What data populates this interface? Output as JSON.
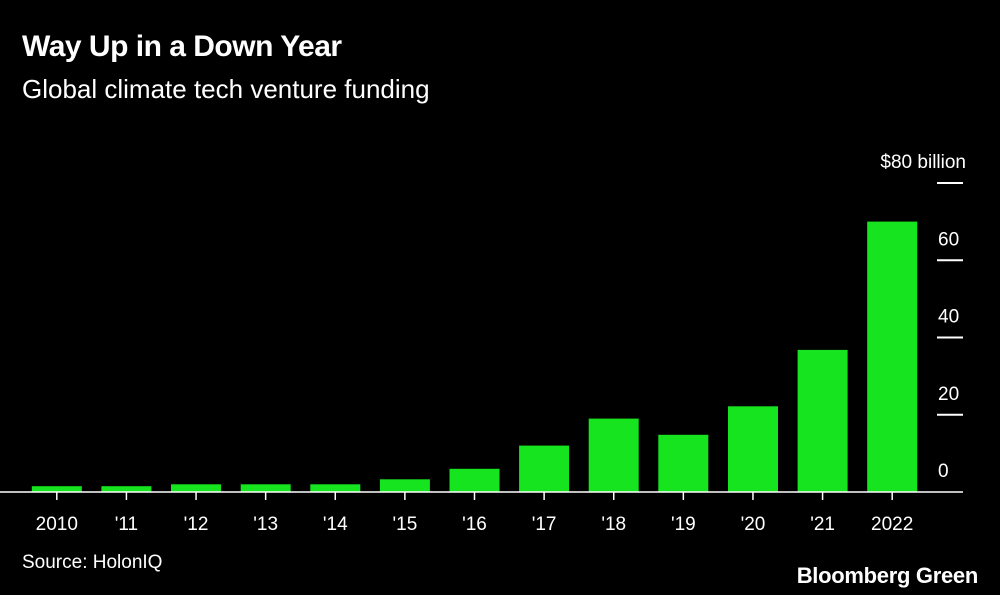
{
  "chart_data": {
    "type": "bar",
    "title": "Way Up in a Down Year",
    "subtitle": "Global climate tech venture funding",
    "categories": [
      "2010",
      "'11",
      "'12",
      "'13",
      "'14",
      "'15",
      "'16",
      "'17",
      "'18",
      "'19",
      "'20",
      "'21",
      "2022"
    ],
    "values": [
      1.5,
      1.5,
      2.0,
      2.0,
      2.0,
      3.3,
      6.0,
      12.0,
      19.0,
      14.8,
      22.2,
      36.8,
      70.0
    ],
    "yticks": [
      0,
      20,
      40,
      60,
      80
    ],
    "ytick_labels": [
      "0",
      "20",
      "40",
      "60",
      "$80 billion"
    ],
    "ylim": [
      0,
      80
    ],
    "xlabel": "",
    "ylabel": "",
    "bar_color": "#16e41e",
    "source": "Source: HolonIQ",
    "brand": "Bloomberg Green"
  }
}
